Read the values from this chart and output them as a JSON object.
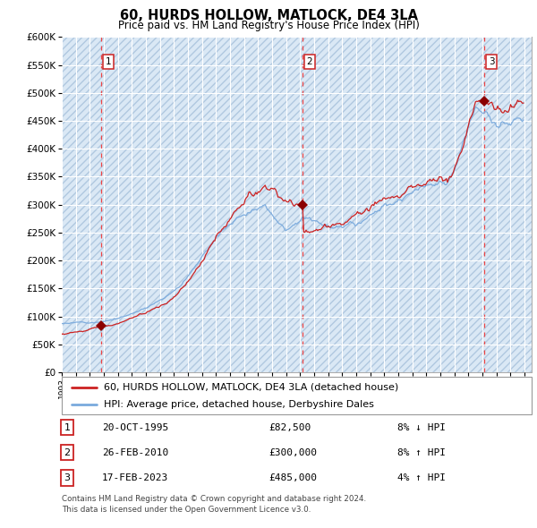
{
  "title": "60, HURDS HOLLOW, MATLOCK, DE4 3LA",
  "subtitle": "Price paid vs. HM Land Registry's House Price Index (HPI)",
  "bg_color": "#dae8f5",
  "hpi_color": "#7aaadd",
  "property_color": "#cc2222",
  "marker_color": "#8b0000",
  "vline_color": "#ee4444",
  "grid_color": "#ffffff",
  "ylim": [
    0,
    600000
  ],
  "legend_label_property": "60, HURDS HOLLOW, MATLOCK, DE4 3LA (detached house)",
  "legend_label_hpi": "HPI: Average price, detached house, Derbyshire Dales",
  "sale1_label": "1",
  "sale1_date": "20-OCT-1995",
  "sale1_price": "£82,500",
  "sale1_hpi": "8% ↓ HPI",
  "sale1_x": 1995.8,
  "sale1_y": 82500,
  "sale2_label": "2",
  "sale2_date": "26-FEB-2010",
  "sale2_price": "£300,000",
  "sale2_hpi": "8% ↑ HPI",
  "sale2_x": 2010.15,
  "sale2_y": 300000,
  "sale3_label": "3",
  "sale3_date": "17-FEB-2023",
  "sale3_price": "£485,000",
  "sale3_hpi": "4% ↑ HPI",
  "sale3_x": 2023.13,
  "sale3_y": 485000,
  "footer": "Contains HM Land Registry data © Crown copyright and database right 2024.\nThis data is licensed under the Open Government Licence v3.0.",
  "xmin": 1993.0,
  "xmax": 2026.5
}
